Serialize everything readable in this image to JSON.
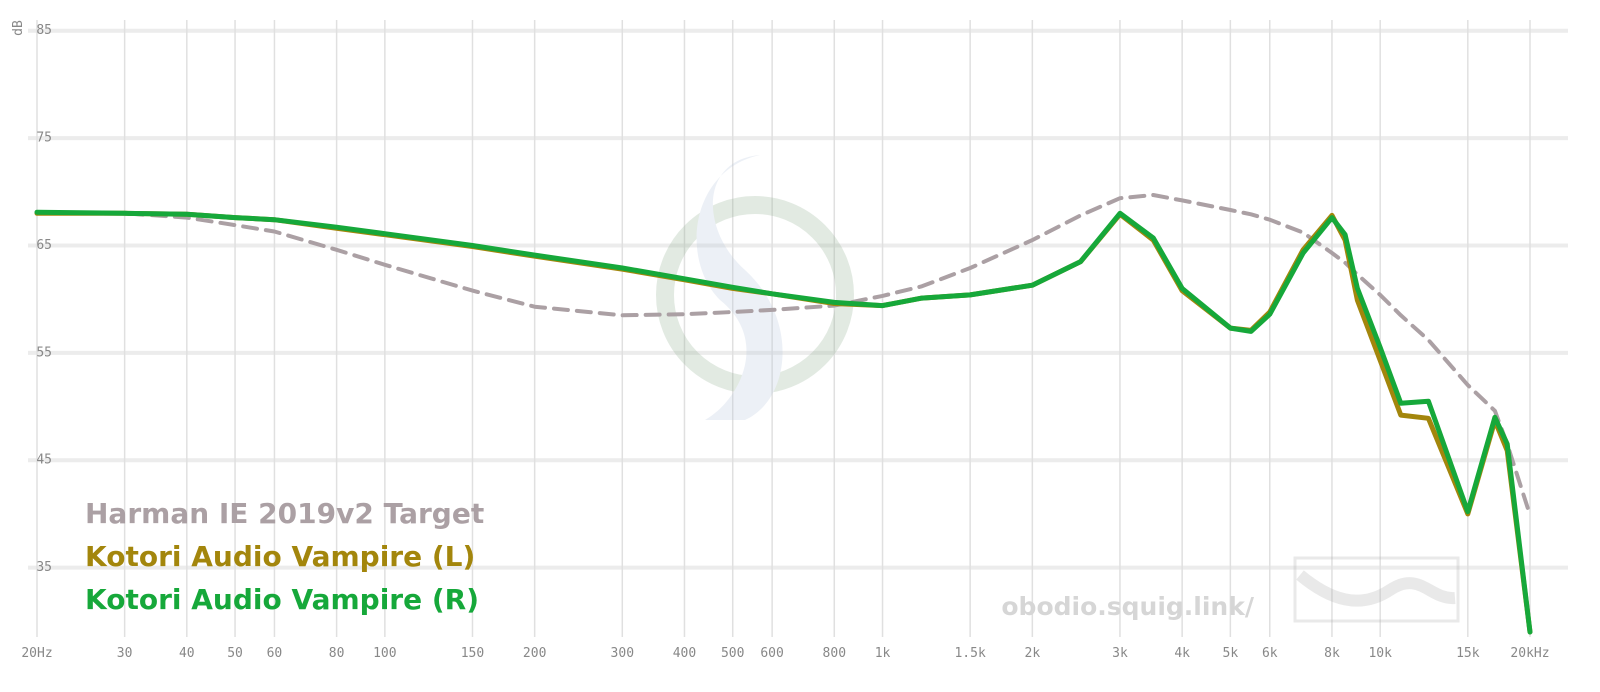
{
  "chart_data": {
    "type": "line",
    "y_axis_label": "dB",
    "x_scale": "log",
    "grid": true,
    "legend_position": "lower left",
    "watermark": "obodio.squig.link/",
    "x": [
      20,
      30,
      40,
      50,
      60,
      80,
      100,
      150,
      200,
      300,
      400,
      500,
      600,
      800,
      1000,
      1200,
      1500,
      2000,
      2500,
      3000,
      3500,
      4000,
      5000,
      5500,
      6000,
      7000,
      8000,
      8500,
      9000,
      10000,
      11000,
      12500,
      15000,
      17000,
      18000,
      20000
    ],
    "series": [
      {
        "name": "Harman IE 2019v2 Target",
        "color": "#aba0a4",
        "dashed": true,
        "values": [
          68.0,
          68.0,
          67.6,
          66.9,
          66.3,
          64.6,
          63.2,
          60.8,
          59.3,
          58.5,
          58.6,
          58.8,
          59.0,
          59.4,
          60.3,
          61.2,
          62.9,
          65.5,
          67.8,
          69.4,
          69.7,
          69.2,
          68.3,
          67.9,
          67.4,
          66.2,
          64.3,
          63.4,
          62.3,
          60.4,
          58.5,
          56.2,
          52.0,
          49.6,
          46.5,
          39.9
        ]
      },
      {
        "name": "Kotori Audio Vampire (L)",
        "color": "#a3860c",
        "dashed": false,
        "values": [
          68.0,
          68.0,
          67.9,
          67.6,
          67.4,
          66.6,
          66.0,
          64.9,
          64.0,
          62.8,
          61.8,
          61.0,
          60.5,
          59.6,
          59.4,
          60.1,
          60.4,
          61.3,
          63.5,
          67.9,
          65.5,
          60.8,
          57.3,
          57.1,
          58.8,
          64.6,
          67.8,
          65.5,
          59.9,
          54.3,
          49.2,
          48.9,
          40.0,
          48.7,
          45.9,
          29.0
        ]
      },
      {
        "name": "Kotori Audio Vampire (R)",
        "color": "#16a83a",
        "dashed": false,
        "values": [
          68.1,
          68.0,
          67.9,
          67.6,
          67.4,
          66.7,
          66.1,
          65.0,
          64.1,
          62.9,
          61.9,
          61.1,
          60.5,
          59.7,
          59.4,
          60.1,
          60.4,
          61.3,
          63.5,
          68.0,
          65.7,
          61.0,
          57.3,
          57.0,
          58.6,
          64.3,
          67.6,
          66.0,
          61.0,
          55.5,
          50.3,
          50.5,
          40.2,
          49.0,
          46.5,
          29.0
        ]
      }
    ],
    "xlim": [
      20,
      20000
    ],
    "xticks": [
      {
        "value": 20,
        "label": "20Hz"
      },
      30,
      40,
      50,
      60,
      80,
      100,
      150,
      200,
      300,
      400,
      500,
      600,
      800,
      {
        "value": 1000,
        "label": "1k"
      },
      {
        "value": 1500,
        "label": "1.5k"
      },
      {
        "value": 2000,
        "label": "2k"
      },
      {
        "value": 3000,
        "label": "3k"
      },
      {
        "value": 4000,
        "label": "4k"
      },
      {
        "value": 5000,
        "label": "5k"
      },
      {
        "value": 6000,
        "label": "6k"
      },
      {
        "value": 8000,
        "label": "8k"
      },
      {
        "value": 10000,
        "label": "10k"
      },
      {
        "value": 15000,
        "label": "15k"
      },
      {
        "value": 20000,
        "label": "20kHz"
      }
    ],
    "ylim": [
      29,
      86
    ],
    "yticks": [
      35,
      45,
      55,
      65,
      75,
      85
    ]
  }
}
